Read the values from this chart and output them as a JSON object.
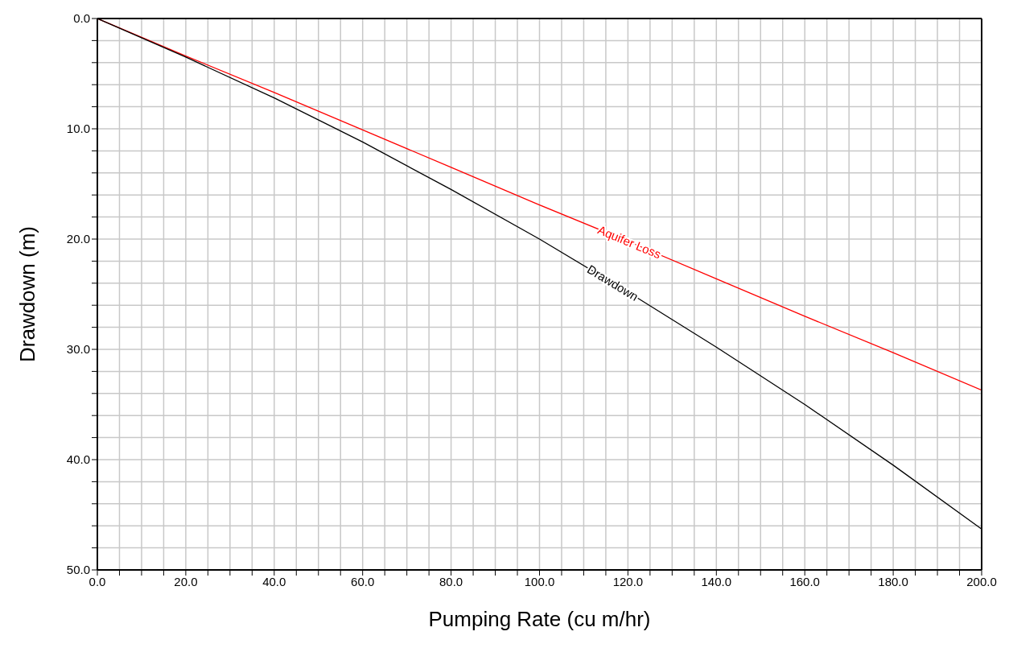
{
  "chart_data": {
    "type": "line",
    "xlabel": "Pumping Rate (cu m/hr)",
    "ylabel": "Drawdown (m)",
    "x": [
      0,
      20,
      40,
      60,
      80,
      100,
      120,
      140,
      160,
      180,
      200
    ],
    "series": [
      {
        "name": "Aquifer Loss",
        "color": "#ff0000",
        "values": [
          0,
          3.4,
          6.7,
          10.1,
          13.5,
          16.9,
          20.2,
          23.6,
          27.0,
          30.3,
          33.7
        ]
      },
      {
        "name": "Drawdown",
        "color": "#000000",
        "values": [
          0,
          3.5,
          7.2,
          11.2,
          15.5,
          20.0,
          24.8,
          29.8,
          35.0,
          40.5,
          46.3
        ]
      }
    ],
    "xlim": [
      0,
      200
    ],
    "xticks": [
      {
        "value": 0,
        "label": "0.0"
      },
      {
        "value": 5,
        "label": null
      },
      {
        "value": 10,
        "label": null
      },
      {
        "value": 15,
        "label": null
      },
      {
        "value": 20,
        "label": "20.0"
      },
      {
        "value": 25,
        "label": null
      },
      {
        "value": 30,
        "label": null
      },
      {
        "value": 35,
        "label": null
      },
      {
        "value": 40,
        "label": "40.0"
      },
      {
        "value": 45,
        "label": null
      },
      {
        "value": 50,
        "label": null
      },
      {
        "value": 55,
        "label": null
      },
      {
        "value": 60,
        "label": "60.0"
      },
      {
        "value": 65,
        "label": null
      },
      {
        "value": 70,
        "label": null
      },
      {
        "value": 75,
        "label": null
      },
      {
        "value": 80,
        "label": "80.0"
      },
      {
        "value": 85,
        "label": null
      },
      {
        "value": 90,
        "label": null
      },
      {
        "value": 95,
        "label": null
      },
      {
        "value": 100,
        "label": "100.0"
      },
      {
        "value": 105,
        "label": null
      },
      {
        "value": 110,
        "label": null
      },
      {
        "value": 115,
        "label": null
      },
      {
        "value": 120,
        "label": "120.0"
      },
      {
        "value": 125,
        "label": null
      },
      {
        "value": 130,
        "label": null
      },
      {
        "value": 135,
        "label": null
      },
      {
        "value": 140,
        "label": "140.0"
      },
      {
        "value": 145,
        "label": null
      },
      {
        "value": 150,
        "label": null
      },
      {
        "value": 155,
        "label": null
      },
      {
        "value": 160,
        "label": "160.0"
      },
      {
        "value": 165,
        "label": null
      },
      {
        "value": 170,
        "label": null
      },
      {
        "value": 175,
        "label": null
      },
      {
        "value": 180,
        "label": "180.0"
      },
      {
        "value": 185,
        "label": null
      },
      {
        "value": 190,
        "label": null
      },
      {
        "value": 195,
        "label": null
      },
      {
        "value": 200,
        "label": "200.0"
      }
    ],
    "ylim": [
      50,
      0
    ],
    "yticks": [
      {
        "value": 0,
        "label": "0.0"
      },
      {
        "value": 2,
        "label": null
      },
      {
        "value": 4,
        "label": null
      },
      {
        "value": 6,
        "label": null
      },
      {
        "value": 8,
        "label": null
      },
      {
        "value": 10,
        "label": "10.0"
      },
      {
        "value": 12,
        "label": null
      },
      {
        "value": 14,
        "label": null
      },
      {
        "value": 16,
        "label": null
      },
      {
        "value": 18,
        "label": null
      },
      {
        "value": 20,
        "label": "20.0"
      },
      {
        "value": 22,
        "label": null
      },
      {
        "value": 24,
        "label": null
      },
      {
        "value": 26,
        "label": null
      },
      {
        "value": 28,
        "label": null
      },
      {
        "value": 30,
        "label": "30.0"
      },
      {
        "value": 32,
        "label": null
      },
      {
        "value": 34,
        "label": null
      },
      {
        "value": 36,
        "label": null
      },
      {
        "value": 38,
        "label": null
      },
      {
        "value": 40,
        "label": "40.0"
      },
      {
        "value": 42,
        "label": null
      },
      {
        "value": 44,
        "label": null
      },
      {
        "value": 46,
        "label": null
      },
      {
        "value": 48,
        "label": null
      },
      {
        "value": 50,
        "label": "50.0"
      }
    ],
    "grid": true,
    "legend": false,
    "marker": "none",
    "line_style": "solid"
  }
}
